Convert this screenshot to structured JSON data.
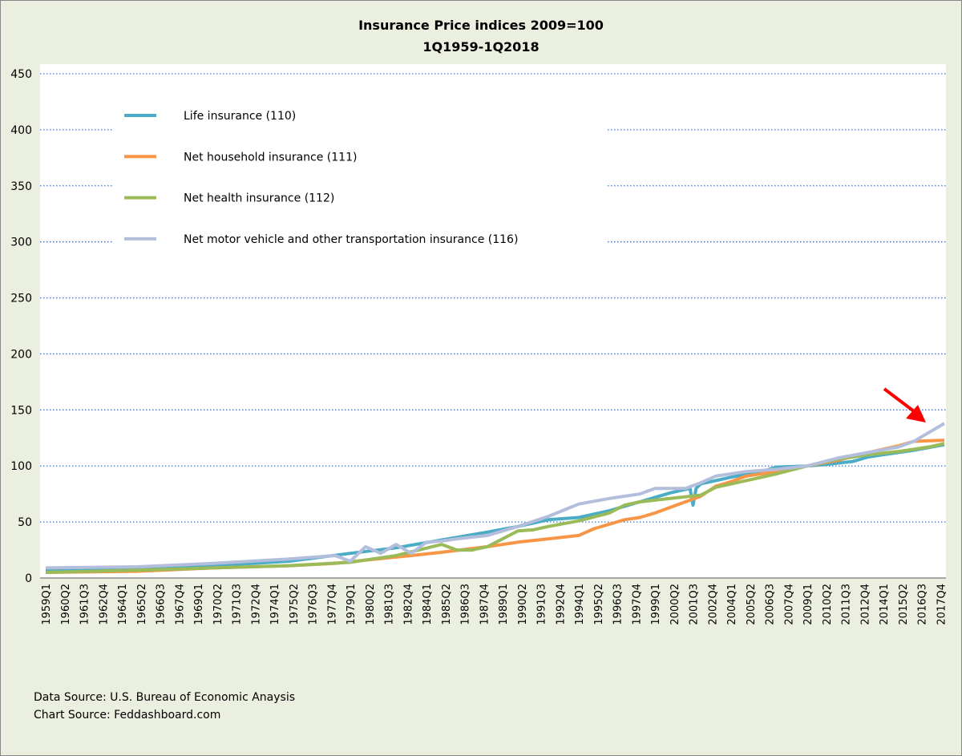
{
  "chart_data": {
    "type": "line",
    "title": "Insurance Price indices 2009=100",
    "subtitle": "1Q1959-1Q2018",
    "xlabel": "",
    "ylabel": "",
    "ylim": [
      0,
      450
    ],
    "yticks": [
      0,
      50,
      100,
      150,
      200,
      250,
      300,
      350,
      400,
      450
    ],
    "grid": true,
    "legend_position": "top-left",
    "xticks": [
      "1959Q1",
      "1960Q2",
      "1961Q3",
      "1962Q4",
      "1964Q1",
      "1965Q2",
      "1966Q3",
      "1967Q4",
      "1969Q1",
      "1970Q2",
      "1971Q3",
      "1972Q4",
      "1974Q1",
      "1975Q2",
      "1976Q3",
      "1977Q4",
      "1979Q1",
      "1980Q2",
      "1981Q3",
      "1982Q4",
      "1984Q1",
      "1985Q2",
      "1986Q3",
      "1987Q4",
      "1989Q1",
      "1990Q2",
      "1991Q3",
      "1992Q4",
      "1994Q1",
      "1995Q2",
      "1996Q3",
      "1997Q4",
      "1999Q1",
      "2000Q2",
      "2001Q3",
      "2002Q4",
      "2004Q1",
      "2005Q2",
      "2006Q3",
      "2007Q4",
      "2009Q1",
      "2010Q2",
      "2011Q3",
      "2012Q4",
      "2014Q1",
      "2015Q2",
      "2016Q3",
      "2017Q4"
    ],
    "xrange": [
      "1959Q1",
      "2018Q1"
    ],
    "series": [
      {
        "name": "Life insurance (110)",
        "color": "#4bacc6",
        "x": [
          1959,
          1965,
          1970,
          1975,
          1979,
          1982,
          1985,
          1988,
          1990,
          1992,
          1994,
          1996,
          1998,
          2000,
          2001.3,
          2001.5,
          2001.7,
          2002,
          2004,
          2006,
          2007,
          2009,
          2010,
          2012,
          2013,
          2014,
          2016,
          2018
        ],
        "y": [
          7,
          9,
          11,
          15,
          22,
          27,
          34,
          41,
          46,
          52,
          54,
          60,
          68,
          76,
          80,
          65,
          80,
          84,
          90,
          95,
          99,
          100,
          101,
          104,
          108,
          110,
          114,
          119
        ]
      },
      {
        "name": "Net household insurance (111)",
        "color": "#f79646",
        "x": [
          1959,
          1965,
          1970,
          1975,
          1978,
          1980,
          1983,
          1985,
          1988,
          1990,
          1992,
          1994,
          1995,
          1997,
          1998,
          1999,
          2000,
          2001,
          2002,
          2003,
          2004,
          2005,
          2007,
          2009,
          2011,
          2013,
          2015,
          2016,
          2018
        ],
        "y": [
          5,
          6,
          9,
          11,
          13,
          16,
          20,
          23,
          28,
          32,
          35,
          38,
          44,
          52,
          54,
          58,
          63,
          68,
          73,
          82,
          86,
          91,
          95,
          100,
          105,
          112,
          118,
          122,
          123
        ]
      },
      {
        "name": "Net health insurance (112)",
        "color": "#9bbb59",
        "x": [
          1959,
          1965,
          1970,
          1975,
          1979,
          1982,
          1985,
          1986,
          1987,
          1988,
          1989,
          1990,
          1991,
          1992,
          1994,
          1996,
          1997,
          1998,
          2000,
          2002,
          2003,
          2005,
          2007,
          2009,
          2011,
          2013,
          2015,
          2017,
          2018
        ],
        "y": [
          5,
          7,
          9,
          11,
          14,
          20,
          30,
          25,
          25,
          28,
          35,
          42,
          43,
          46,
          51,
          58,
          65,
          68,
          71,
          74,
          81,
          87,
          93,
          100,
          106,
          110,
          113,
          117,
          120
        ]
      },
      {
        "name": "Net motor vehicle and other transportation insurance (116)",
        "color": "#b3bedc",
        "x": [
          1959,
          1965,
          1970,
          1975,
          1978,
          1979,
          1980,
          1981,
          1982,
          1983,
          1984,
          1985,
          1986,
          1988,
          1990,
          1992,
          1994,
          1996,
          1998,
          1999,
          2000,
          2001,
          2002,
          2003,
          2005,
          2007,
          2009,
          2011,
          2013,
          2015,
          2016,
          2017,
          2018
        ],
        "y": [
          9,
          10,
          13,
          17,
          20,
          15,
          28,
          22,
          30,
          22,
          32,
          33,
          35,
          38,
          46,
          55,
          66,
          71,
          75,
          80,
          80,
          80,
          85,
          91,
          95,
          97,
          100,
          107,
          112,
          117,
          122,
          130,
          138
        ]
      }
    ]
  },
  "notes": {
    "data_source": "Data Source: U.S. Bureau of Economic Anaysis",
    "chart_source": "Chart Source: Feddashboard.com"
  },
  "annotation": {
    "arrow_color": "#ff0000"
  }
}
